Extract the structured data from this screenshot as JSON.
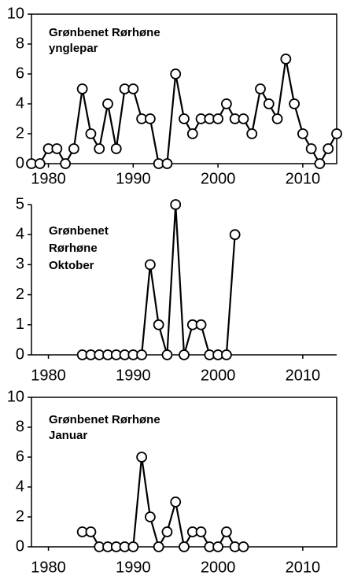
{
  "chart_data": [
    {
      "type": "line",
      "title": [
        "Grønbenet Rørhøne",
        "ynglepar"
      ],
      "frame": true,
      "x": [
        1978,
        1979,
        1980,
        1981,
        1982,
        1983,
        1984,
        1985,
        1986,
        1987,
        1988,
        1989,
        1990,
        1991,
        1992,
        1993,
        1994,
        1995,
        1996,
        1997,
        1998,
        1999,
        2000,
        2001,
        2002,
        2003,
        2004,
        2005,
        2006,
        2007,
        2008,
        2009,
        2010,
        2011,
        2012,
        2013,
        2014
      ],
      "values": [
        0,
        0,
        1,
        1,
        0,
        1,
        5,
        2,
        1,
        4,
        1,
        5,
        5,
        3,
        3,
        0,
        0,
        6,
        3,
        2,
        3,
        3,
        3,
        4,
        3,
        3,
        2,
        5,
        4,
        3,
        7,
        4,
        2,
        1,
        0,
        1,
        2
      ],
      "color": "#000000",
      "xlim": [
        1978,
        2014
      ],
      "xticks": [
        1980,
        1990,
        2000,
        2010
      ],
      "ylim": [
        0,
        10
      ],
      "yticks": [
        0,
        2,
        4,
        6,
        8,
        10
      ]
    },
    {
      "type": "line",
      "title": [
        "Grønbenet",
        "Rørhøne",
        "Oktober"
      ],
      "frame": false,
      "x": [
        1984,
        1985,
        1986,
        1987,
        1988,
        1989,
        1990,
        1991,
        1992,
        1993,
        1994,
        1995,
        1996,
        1997,
        1998,
        1999,
        2000,
        2001,
        2002
      ],
      "values": [
        0,
        0,
        0,
        0,
        0,
        0,
        0,
        0,
        3,
        1,
        0,
        5,
        0,
        1,
        1,
        0,
        0,
        0,
        4
      ],
      "color": "#000000",
      "xlim": [
        1978,
        2014
      ],
      "xticks": [
        1980,
        1990,
        2000,
        2010
      ],
      "ylim": [
        0,
        5
      ],
      "yticks": [
        0,
        1,
        2,
        3,
        4,
        5
      ]
    },
    {
      "type": "line",
      "title": [
        "Grønbenet Rørhøne",
        "Januar"
      ],
      "frame": true,
      "x": [
        1984,
        1985,
        1986,
        1987,
        1988,
        1989,
        1990,
        1991,
        1992,
        1993,
        1994,
        1995,
        1996,
        1997,
        1998,
        1999,
        2000,
        2001,
        2002,
        2003
      ],
      "values": [
        1,
        1,
        0,
        0,
        0,
        0,
        0,
        6,
        2,
        0,
        1,
        3,
        0,
        1,
        1,
        0,
        0,
        1,
        0,
        0
      ],
      "color": "#000000",
      "xlim": [
        1978,
        2014
      ],
      "xticks": [
        1980,
        1990,
        2000,
        2010
      ],
      "ylim": [
        0,
        10
      ],
      "yticks": [
        0,
        2,
        4,
        6,
        8,
        10
      ]
    }
  ]
}
